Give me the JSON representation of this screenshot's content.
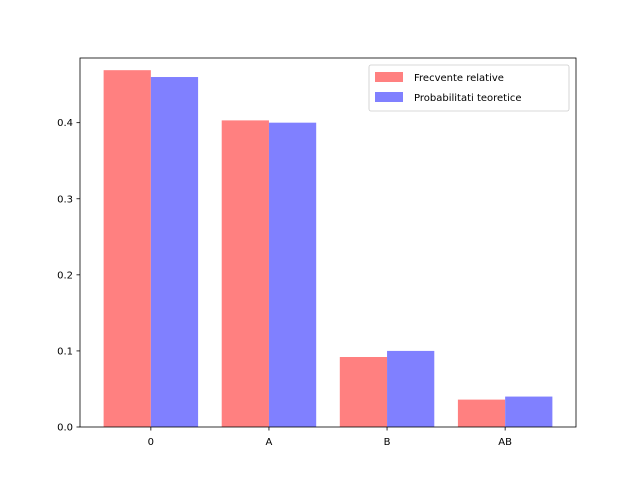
{
  "chart_data": {
    "type": "bar",
    "title": "",
    "xlabel": "",
    "ylabel": "",
    "categories": [
      "0",
      "A",
      "B",
      "AB"
    ],
    "ylim": [
      0,
      0.485
    ],
    "yticks": [
      "0.0",
      "0.1",
      "0.2",
      "0.3",
      "0.4"
    ],
    "series": [
      {
        "name": "Frecvente relative",
        "values": [
          0.469,
          0.403,
          0.092,
          0.036
        ],
        "color": "#ff8080"
      },
      {
        "name": "Probabilitati teoretice",
        "values": [
          0.46,
          0.4,
          0.1,
          0.04
        ],
        "color": "#8080ff"
      }
    ],
    "legend_position": "top-right",
    "grid": false
  }
}
